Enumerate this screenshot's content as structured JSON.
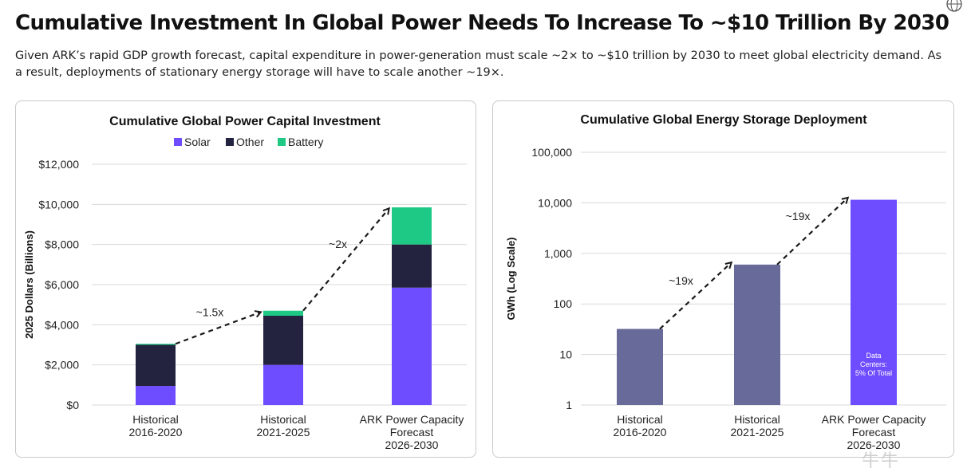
{
  "header": {
    "title": "Cumulative Investment In Global Power Needs To Increase To ~$10 Trillion By 2030",
    "subtitle": "Given ARK’s rapid GDP growth forecast, capital expenditure in power-generation must scale ~2× to ~$10 trillion by 2030 to meet global electricity demand. As a result, deployments of stationary energy storage will have to scale another ~19×."
  },
  "watermark": "牛牛",
  "colors": {
    "solar": "#6e4cff",
    "other": "#23223f",
    "battery": "#1dc985",
    "storage_bar": "#686a99",
    "forecast_bar": "#6e4cff",
    "grid": "#d9d9d9",
    "arrow": "#1a1a1a"
  },
  "chart_data": [
    {
      "type": "bar",
      "stacked": true,
      "title": "Cumulative Global Power Capital Investment",
      "ylabel": "2025 Dollars (Billions)",
      "xlabel": "",
      "ylim": [
        0,
        12000
      ],
      "yticks": [
        0,
        2000,
        4000,
        6000,
        8000,
        10000,
        12000
      ],
      "ytick_labels": [
        "$0",
        "$2,000",
        "$4,000",
        "$6,000",
        "$8,000",
        "$10,000",
        "$12,000"
      ],
      "grid": true,
      "legend": "top-center",
      "categories": [
        [
          "Historical",
          "2016-2020"
        ],
        [
          "Historical",
          "2021-2025"
        ],
        [
          "ARK Power Capacity",
          "Forecast",
          "2026-2030"
        ]
      ],
      "series": [
        {
          "name": "Solar",
          "color_key": "solar",
          "values": [
            950,
            2000,
            5850
          ]
        },
        {
          "name": "Other",
          "color_key": "other",
          "values": [
            2050,
            2450,
            2150
          ]
        },
        {
          "name": "Battery",
          "color_key": "battery",
          "values": [
            50,
            250,
            1850
          ]
        }
      ],
      "annotations": [
        {
          "text": "~1.5x",
          "from": 0,
          "to": 1
        },
        {
          "text": "~2x",
          "from": 1,
          "to": 2
        }
      ]
    },
    {
      "type": "bar",
      "scale": "log",
      "title": "Cumulative Global Energy Storage Deployment",
      "ylabel": "GWh (Log Scale)",
      "xlabel": "",
      "ylim": [
        1,
        100000
      ],
      "yticks": [
        1,
        10,
        100,
        1000,
        10000,
        100000
      ],
      "ytick_labels": [
        "1",
        "10",
        "100",
        "1,000",
        "10,000",
        "100,000"
      ],
      "grid": true,
      "categories": [
        [
          "Historical",
          "2016-2020"
        ],
        [
          "Historical",
          "2021-2025"
        ],
        [
          "ARK Power Capacity",
          "Forecast",
          "2026-2030"
        ]
      ],
      "values": [
        32,
        600,
        11500
      ],
      "bar_color_keys": [
        "storage_bar",
        "storage_bar",
        "forecast_bar"
      ],
      "bar_label": {
        "index": 2,
        "lines": [
          "Data",
          "Centers:",
          "5% Of Total"
        ]
      },
      "annotations": [
        {
          "text": "~19x",
          "from": 0,
          "to": 1
        },
        {
          "text": "~19x",
          "from": 1,
          "to": 2
        }
      ]
    }
  ]
}
